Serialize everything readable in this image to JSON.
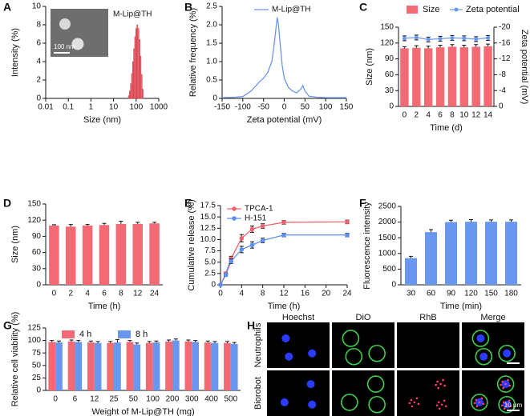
{
  "chart_data": [
    {
      "panel_label": "A",
      "type": "histogram",
      "xlabel": "Size (nm)",
      "ylabel": "Intensity (%)",
      "series_name": "M-Lip@TH",
      "inset_scale": "100 nm",
      "log_x": true,
      "xlim": [
        0.01,
        1000
      ],
      "xticks": [
        0.01,
        0.1,
        1,
        10,
        100,
        1000
      ],
      "ylim": [
        0,
        10
      ],
      "yticks": [
        0,
        2,
        4,
        6,
        8,
        10
      ],
      "color": "#f46a74",
      "bins": [
        45,
        50,
        56,
        62,
        69,
        77,
        86,
        96,
        107,
        119,
        133,
        148,
        165,
        184,
        205
      ],
      "counts": [
        0.3,
        0.8,
        1.6,
        2.7,
        4.0,
        5.4,
        6.7,
        7.6,
        8.0,
        7.6,
        6.4,
        4.6,
        2.6,
        1.0
      ]
    },
    {
      "panel_label": "B",
      "type": "line",
      "xlabel": "Zeta potential (mV)",
      "ylabel": "Relative frequency (%)",
      "xlim": [
        -150,
        150
      ],
      "xticks": [
        -150,
        -100,
        -50,
        0,
        50,
        100,
        150
      ],
      "ylim": [
        0,
        2.5
      ],
      "yticks": [
        0,
        0.5,
        {
          "value": 1,
          "label": "1.0"
        },
        1.5,
        {
          "value": 2,
          "label": "2.0"
        },
        2.5
      ],
      "x": [
        -150,
        -120,
        -100,
        -80,
        -60,
        -50,
        -40,
        -30,
        -25,
        -20,
        -17,
        -14,
        -10,
        -5,
        0,
        10,
        20,
        30,
        40,
        45,
        50,
        60,
        80,
        100,
        150
      ],
      "series": [
        {
          "name": "M-Lip@TH",
          "color": "#6a97ee",
          "values": [
            0.02,
            0.03,
            0.05,
            0.2,
            0.45,
            0.55,
            0.7,
            1.0,
            1.4,
            1.9,
            2.2,
            2.0,
            1.5,
            0.9,
            0.55,
            0.3,
            0.2,
            0.15,
            0.25,
            0.35,
            0.2,
            0.06,
            0.03,
            0.02,
            0.02
          ]
        }
      ]
    },
    {
      "panel_label": "C",
      "type": "bar_line",
      "xlabel": "Time (d)",
      "ylabel": "Size (nm)",
      "y2label": "Zeta potential (mV)",
      "categories": [
        "0",
        "2",
        "4",
        "6",
        "8",
        "10",
        "12",
        "14"
      ],
      "ylim": [
        0,
        150
      ],
      "yticks": [
        0,
        30,
        60,
        90,
        120,
        150
      ],
      "y2lim": [
        0,
        -20
      ],
      "y2ticks": [
        0,
        -4,
        -8,
        -12,
        -16,
        -20
      ],
      "series": [
        {
          "name": "Size",
          "color": "#f46a74",
          "values": [
            110,
            111,
            110,
            112,
            113,
            112,
            113,
            114
          ],
          "errors": [
            3,
            4,
            4,
            4,
            4,
            4,
            4,
            4
          ]
        },
        {
          "name": "Zeta potential",
          "color": "#6a97ee",
          "axis": "y2",
          "values": [
            -17.2,
            -17.4,
            -16.9,
            -17.1,
            -17.3,
            -17.2,
            -17.0,
            -17.3
          ],
          "errors": [
            0.6,
            0.6,
            0.6,
            0.6,
            0.6,
            0.6,
            0.6,
            0.6
          ]
        }
      ]
    },
    {
      "panel_label": "D",
      "type": "bar",
      "xlabel": "Time (h)",
      "ylabel": "Size (nm)",
      "color": "#f46a74",
      "categories": [
        "0",
        "2",
        "4",
        "6",
        "8",
        "12",
        "24"
      ],
      "values": [
        110,
        108,
        110,
        111,
        113,
        113,
        114
      ],
      "errors": [
        1.5,
        4,
        2,
        3,
        5,
        3,
        2
      ],
      "ylim": [
        0,
        150
      ],
      "yticks": [
        0,
        30,
        60,
        90,
        120,
        150
      ]
    },
    {
      "panel_label": "E",
      "type": "line",
      "xlabel": "Time (h)",
      "ylabel": "Cumulative release (%)",
      "markers": true,
      "xlim": [
        0,
        24
      ],
      "xticks": [
        0,
        4,
        8,
        12,
        16,
        20,
        24
      ],
      "ylim": [
        0,
        17.5
      ],
      "yticks": [
        0,
        2.5,
        {
          "value": 5,
          "label": "5.0"
        },
        7.5,
        {
          "value": 10,
          "label": "10.0"
        },
        12.5,
        {
          "value": 15,
          "label": "15.0"
        },
        17.5
      ],
      "x": [
        0,
        1,
        2,
        4,
        6,
        8,
        12,
        24
      ],
      "series": [
        {
          "name": "TPCA-1",
          "color": "#f0626e",
          "values": [
            0,
            2.5,
            5.8,
            10.3,
            12.3,
            13.0,
            13.8,
            13.9
          ],
          "errors": [
            0,
            0.3,
            0.5,
            0.8,
            0.7,
            0.5,
            0.4,
            0.4
          ]
        },
        {
          "name": "H-151",
          "color": "#5b8ff0",
          "values": [
            0,
            2.2,
            5.2,
            7.8,
            8.8,
            9.8,
            11.0,
            11.0
          ],
          "errors": [
            0,
            0.3,
            0.5,
            0.7,
            0.7,
            0.5,
            0.4,
            0.4
          ]
        }
      ]
    },
    {
      "panel_label": "F",
      "type": "bar",
      "xlabel": "Time (min)",
      "ylabel": "Fluorescence intensity",
      "color": "#6a97ee",
      "categories": [
        "30",
        "60",
        "90",
        "120",
        "150",
        "180"
      ],
      "values": [
        850,
        1680,
        2000,
        2010,
        2010,
        2010
      ],
      "errors": [
        60,
        80,
        60,
        70,
        60,
        60
      ],
      "ylim": [
        0,
        2500
      ],
      "yticks": [
        0,
        500,
        1000,
        1500,
        2000,
        2500
      ]
    },
    {
      "panel_label": "G",
      "type": "bar",
      "xlabel": "Weight of M-Lip@TH (mg)",
      "ylabel": "Relative cell viability (%)",
      "categories": [
        "0",
        "6",
        "12",
        "25",
        "50",
        "100",
        "200",
        "300",
        "400",
        "500"
      ],
      "ylim": [
        0,
        125
      ],
      "yticks": [
        0,
        25,
        50,
        75,
        100,
        125
      ],
      "series": [
        {
          "name": "4 h",
          "color": "#f46a74",
          "values": [
            97,
            98,
            96,
            95,
            97,
            95,
            98,
            98,
            96,
            95
          ],
          "errors": [
            3,
            3,
            3,
            3,
            3,
            3,
            3,
            3,
            3,
            3
          ]
        },
        {
          "name": "8 h",
          "color": "#6a97ee",
          "values": [
            96,
            97,
            95,
            96,
            92,
            96,
            100,
            97,
            95,
            93
          ],
          "errors": [
            3,
            3,
            3,
            6,
            3,
            3,
            3,
            3,
            3,
            3
          ]
        }
      ]
    }
  ],
  "H": {
    "panel_label": "H",
    "columns": [
      "Hoechst",
      "DiO",
      "RhB",
      "Merge"
    ],
    "rows": [
      "Neutrophils",
      "Biorobot"
    ],
    "scale_bar": "10 μm"
  }
}
